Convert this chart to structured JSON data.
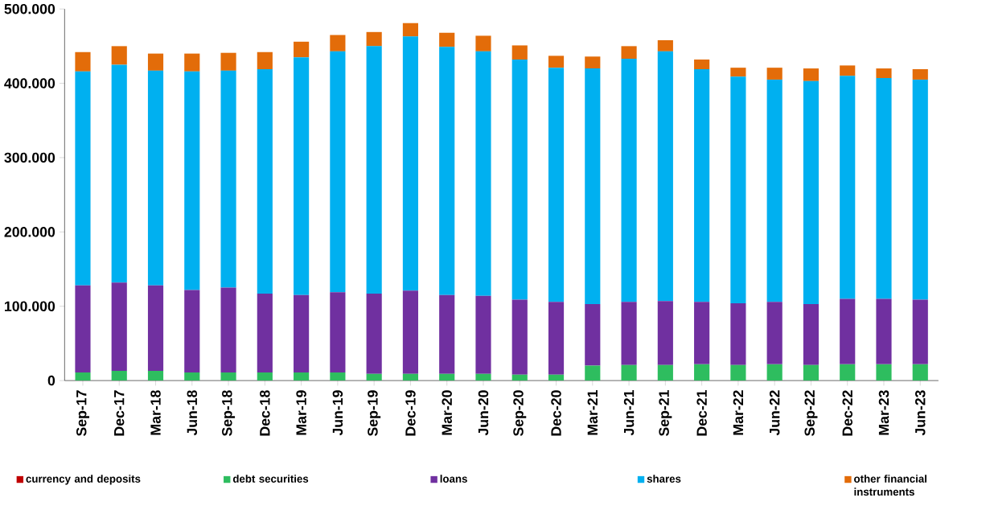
{
  "chart_data": {
    "type": "bar",
    "stacked": true,
    "categories": [
      "Sep-17",
      "Dec-17",
      "Mar-18",
      "Jun-18",
      "Sep-18",
      "Dec-18",
      "Mar-19",
      "Jun-19",
      "Sep-19",
      "Dec-19",
      "Mar-20",
      "Jun-20",
      "Sep-20",
      "Dec-20",
      "Mar-21",
      "Jun-21",
      "Sep-21",
      "Dec-21",
      "Mar-22",
      "Jun-22",
      "Sep-22",
      "Dec-22",
      "Mar-23",
      "Jun-23"
    ],
    "series": [
      {
        "name": "currency and deposits",
        "color": "#c00000",
        "values": [
          0,
          0,
          0,
          0,
          0,
          0,
          0,
          0,
          0,
          0,
          0,
          0,
          0,
          0,
          0,
          0,
          0,
          0,
          0,
          0,
          0,
          0,
          0,
          0
        ]
      },
      {
        "name": "debt securities",
        "color": "#2ebd5f",
        "values": [
          11000,
          13000,
          13000,
          11000,
          11000,
          11000,
          11000,
          11000,
          9000,
          9000,
          9000,
          9000,
          8000,
          8000,
          20000,
          21000,
          21000,
          22000,
          21000,
          22000,
          21000,
          22000,
          22000,
          22000
        ]
      },
      {
        "name": "loans",
        "color": "#7030a0",
        "values": [
          117000,
          119000,
          115000,
          111000,
          114000,
          106000,
          104000,
          108000,
          108000,
          112000,
          106000,
          105000,
          101000,
          98000,
          83000,
          85000,
          86000,
          84000,
          83000,
          84000,
          82000,
          88000,
          88000,
          87000
        ]
      },
      {
        "name": "shares",
        "color": "#00b0f0",
        "values": [
          288000,
          293000,
          289000,
          294000,
          292000,
          302000,
          320000,
          324000,
          333000,
          342000,
          334000,
          329000,
          323000,
          315000,
          317000,
          327000,
          336000,
          313000,
          305000,
          299000,
          300000,
          300000,
          297000,
          296000
        ]
      },
      {
        "name": "other financial instruments",
        "color": "#e36c09",
        "values": [
          26000,
          25000,
          23000,
          24000,
          24000,
          23000,
          21000,
          22000,
          19000,
          18000,
          19000,
          21000,
          19000,
          16000,
          16000,
          17000,
          15000,
          13000,
          12000,
          16000,
          17000,
          14000,
          13000,
          14000
        ]
      }
    ],
    "ylim": [
      0,
      500000
    ],
    "yticks": [
      {
        "value": 0,
        "label": "0"
      },
      {
        "value": 100000,
        "label": "100.000"
      },
      {
        "value": 200000,
        "label": "200.000"
      },
      {
        "value": 300000,
        "label": "300.000"
      },
      {
        "value": 400000,
        "label": "400.000"
      },
      {
        "value": 500000,
        "label": "500.000"
      }
    ],
    "grid": false,
    "legend": "bottom"
  }
}
